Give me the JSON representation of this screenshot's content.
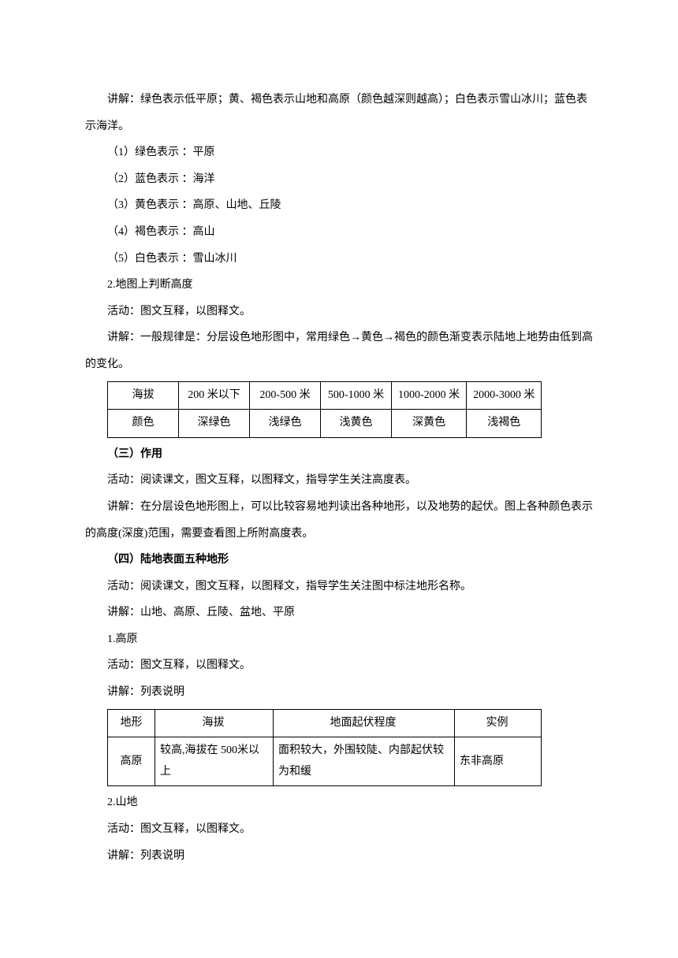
{
  "p_intro": "讲解：绿色表示低平原；黄、褐色表示山地和高原（颜色越深则越高）；白色表示雪山冰川；蓝色表示海洋。",
  "list_colors": {
    "i1": "（1）绿色表示 ：平原",
    "i2": "（2）蓝色表示 ：海洋",
    "i3": "（3）黄色表示 ：高原、山地、丘陵",
    "i4": "（4）褐色表示 ：高山",
    "i5": "（5）白色表示 ：雪山冰川"
  },
  "s2_title": "2.地图上判断高度",
  "s2_activity": "活动：图文互释，以图释文。",
  "s2_explain": "讲解：一般规律是：分层设色地形图中，常用绿色→黄色→褐色的颜色渐变表示陆地上地势由低到高的变化。",
  "table1": {
    "r1": {
      "c1": "海拔",
      "c2": "200 米以下",
      "c3": "200-500 米",
      "c4": "500-1000 米",
      "c5": "1000-2000 米",
      "c6": "2000-3000 米"
    },
    "r2": {
      "c1": "颜色",
      "c2": "深绿色",
      "c3": "浅绿色",
      "c4": "浅黄色",
      "c5": "深黄色",
      "c6": "浅褐色"
    }
  },
  "s3_heading": "（三）作用",
  "s3_activity": "活动：阅读课文，图文互释，以图释文，指导学生关注高度表。",
  "s3_explain": "讲解：在分层设色地形图上，可以比较容易地判读出各种地形，以及地势的起伏。图上各种颜色表示的高度(深度)范围，需要查看图上所附高度表。",
  "s4_heading": "（四）陆地表面五种地形",
  "s4_activity": "活动：阅读课文，图文互释，以图释文，指导学生关注图中标注地形名称。",
  "s4_explain": "讲解：山地、高原、丘陵、盆地、平原",
  "s4_1_title": "1.高原",
  "s4_1_activity": "活动：图文互释，以图释文。",
  "s4_1_explain": "讲解：列表说明",
  "table2": {
    "h": {
      "c1": "地形",
      "c2": "海拔",
      "c3": "地面起伏程度",
      "c4": "实例"
    },
    "r1": {
      "c1": "高原",
      "c2": "较高,海拔在 500米以上",
      "c3": "面积较大，外围较陡、内部起伏较为和缓",
      "c4": "东非高原"
    }
  },
  "s4_2_title": "2.山地",
  "s4_2_activity": "活动：图文互释，以图释文。",
  "s4_2_explain": "讲解：列表说明"
}
